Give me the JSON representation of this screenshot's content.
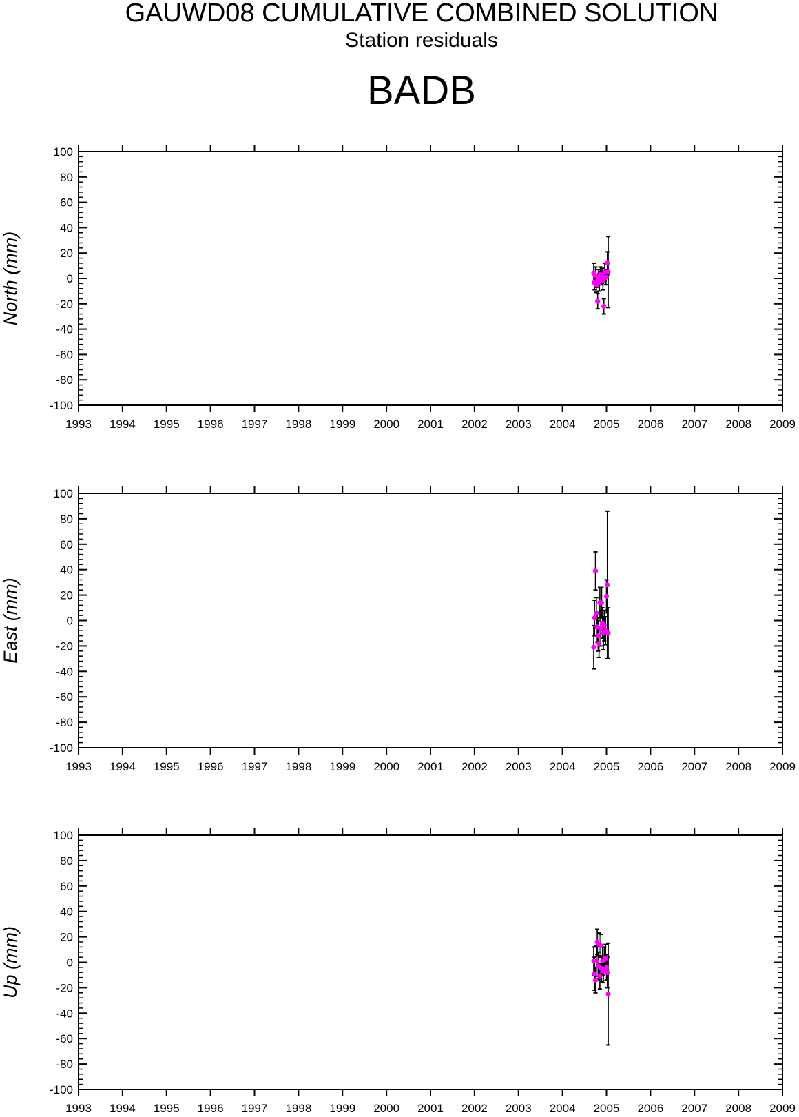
{
  "header": {
    "title": "GAUWD08 CUMULATIVE COMBINED SOLUTION",
    "subtitle": "Station residuals",
    "station": "BADB"
  },
  "colors": {
    "point": "#ff00ff",
    "errorbar": "#000000",
    "axis": "#000000"
  },
  "chart_data": [
    {
      "type": "scatter",
      "ylabel": "North (mm)",
      "xlim": [
        1993,
        2009
      ],
      "ylim": [
        -100,
        100
      ],
      "x_ticks": [
        "1993",
        "1994",
        "1995",
        "1996",
        "1997",
        "1998",
        "1999",
        "2000",
        "2001",
        "2002",
        "2003",
        "2004",
        "2005",
        "2006",
        "2007",
        "2008",
        "2009"
      ],
      "y_ticks": [
        "100",
        "80",
        "60",
        "40",
        "20",
        "0",
        "-20",
        "-40",
        "-60",
        "-80",
        "-100"
      ],
      "grid": false,
      "points": [
        {
          "x": 2004.71,
          "y": 4,
          "err": 8
        },
        {
          "x": 2004.73,
          "y": -3,
          "err": 6
        },
        {
          "x": 2004.75,
          "y": 2,
          "err": 7
        },
        {
          "x": 2004.77,
          "y": -5,
          "err": 6
        },
        {
          "x": 2004.79,
          "y": -2,
          "err": 5
        },
        {
          "x": 2004.8,
          "y": -18,
          "err": 6
        },
        {
          "x": 2004.82,
          "y": 1,
          "err": 6
        },
        {
          "x": 2004.84,
          "y": -3,
          "err": 7
        },
        {
          "x": 2004.86,
          "y": 3,
          "err": 6
        },
        {
          "x": 2004.88,
          "y": 0,
          "err": 5
        },
        {
          "x": 2004.9,
          "y": 2,
          "err": 6
        },
        {
          "x": 2004.92,
          "y": -2,
          "err": 7
        },
        {
          "x": 2004.94,
          "y": -22,
          "err": 6
        },
        {
          "x": 2004.96,
          "y": 5,
          "err": 7
        },
        {
          "x": 2004.99,
          "y": 1,
          "err": 6
        },
        {
          "x": 2005.02,
          "y": 12,
          "err": 9
        },
        {
          "x": 2005.04,
          "y": 5,
          "err": 28
        }
      ]
    },
    {
      "type": "scatter",
      "ylabel": "East (mm)",
      "xlim": [
        1993,
        2009
      ],
      "ylim": [
        -100,
        100
      ],
      "x_ticks": [
        "1993",
        "1994",
        "1995",
        "1996",
        "1997",
        "1998",
        "1999",
        "2000",
        "2001",
        "2002",
        "2003",
        "2004",
        "2005",
        "2006",
        "2007",
        "2008",
        "2009"
      ],
      "y_ticks": [
        "100",
        "80",
        "60",
        "40",
        "20",
        "0",
        "-20",
        "-40",
        "-60",
        "-80",
        "-100"
      ],
      "grid": false,
      "points": [
        {
          "x": 2004.71,
          "y": -21,
          "err": 17
        },
        {
          "x": 2004.73,
          "y": 2,
          "err": 14
        },
        {
          "x": 2004.75,
          "y": 39,
          "err": 15
        },
        {
          "x": 2004.77,
          "y": 6,
          "err": 12
        },
        {
          "x": 2004.79,
          "y": -5,
          "err": 12
        },
        {
          "x": 2004.81,
          "y": -12,
          "err": 12
        },
        {
          "x": 2004.83,
          "y": -18,
          "err": 11
        },
        {
          "x": 2004.85,
          "y": 14,
          "err": 12
        },
        {
          "x": 2004.87,
          "y": -6,
          "err": 14
        },
        {
          "x": 2004.89,
          "y": 14,
          "err": 12
        },
        {
          "x": 2004.91,
          "y": -2,
          "err": 12
        },
        {
          "x": 2004.93,
          "y": -10,
          "err": 13
        },
        {
          "x": 2004.95,
          "y": -4,
          "err": 12
        },
        {
          "x": 2004.98,
          "y": -8,
          "err": 11
        },
        {
          "x": 2005.0,
          "y": 19,
          "err": 13
        },
        {
          "x": 2005.02,
          "y": 28,
          "err": 58
        },
        {
          "x": 2005.04,
          "y": -10,
          "err": 20
        }
      ]
    },
    {
      "type": "scatter",
      "ylabel": "Up (mm)",
      "xlim": [
        1993,
        2009
      ],
      "ylim": [
        -100,
        100
      ],
      "x_ticks": [
        "1993",
        "1994",
        "1995",
        "1996",
        "1997",
        "1998",
        "1999",
        "2000",
        "2001",
        "2002",
        "2003",
        "2004",
        "2005",
        "2006",
        "2007",
        "2008",
        "2009"
      ],
      "y_ticks": [
        "100",
        "80",
        "60",
        "40",
        "20",
        "0",
        "-20",
        "-40",
        "-60",
        "-80",
        "-100"
      ],
      "grid": false,
      "points": [
        {
          "x": 2004.71,
          "y": 1,
          "err": 11
        },
        {
          "x": 2004.73,
          "y": -9,
          "err": 13
        },
        {
          "x": 2004.75,
          "y": -14,
          "err": 10
        },
        {
          "x": 2004.77,
          "y": 1,
          "err": 12
        },
        {
          "x": 2004.79,
          "y": 16,
          "err": 10
        },
        {
          "x": 2004.81,
          "y": -3,
          "err": 11
        },
        {
          "x": 2004.83,
          "y": 14,
          "err": 9
        },
        {
          "x": 2004.85,
          "y": -11,
          "err": 10
        },
        {
          "x": 2004.87,
          "y": 13,
          "err": 9
        },
        {
          "x": 2004.89,
          "y": -5,
          "err": 10
        },
        {
          "x": 2004.91,
          "y": 1,
          "err": 11
        },
        {
          "x": 2004.93,
          "y": -7,
          "err": 9
        },
        {
          "x": 2004.95,
          "y": 2,
          "err": 10
        },
        {
          "x": 2004.98,
          "y": 3,
          "err": 11
        },
        {
          "x": 2005.0,
          "y": -4,
          "err": 10
        },
        {
          "x": 2005.02,
          "y": -8,
          "err": 12
        },
        {
          "x": 2005.04,
          "y": -25,
          "err": 40
        }
      ]
    }
  ]
}
